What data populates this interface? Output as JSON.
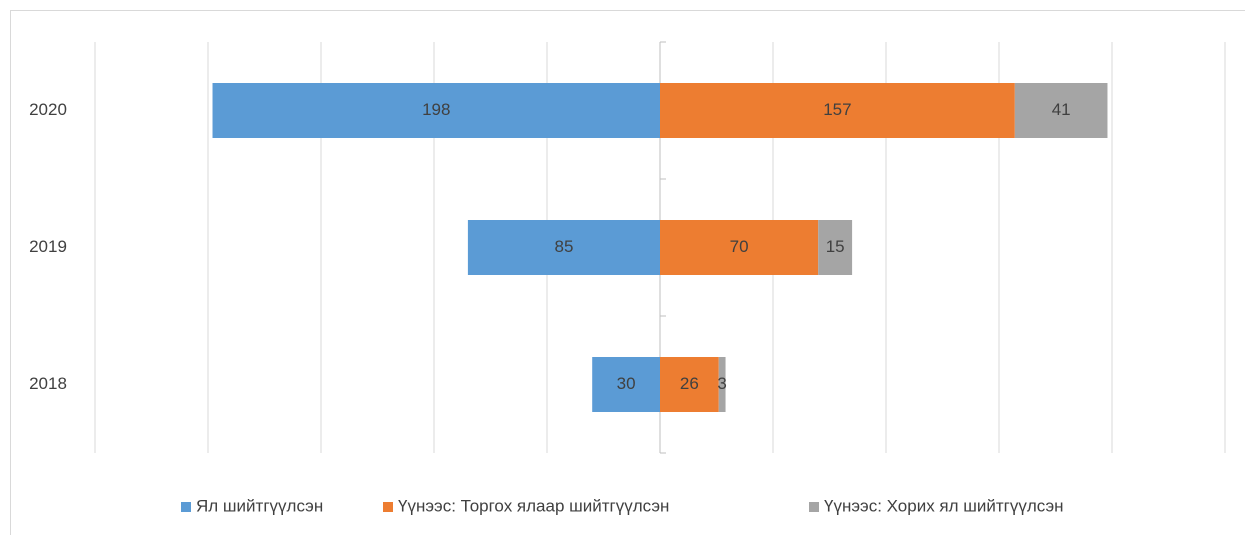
{
  "chart_data": {
    "type": "diverging-bar",
    "categories": [
      "2020",
      "2019",
      "2018"
    ],
    "series": [
      {
        "name": "Ял шийтгүүлсэн",
        "color": "#5b9bd5",
        "side": "left",
        "values": [
          198,
          85,
          30
        ]
      },
      {
        "name": "Үүнээс: Торгох ялаар шийтгүүлсэн",
        "color": "#ed7d31",
        "side": "right",
        "values": [
          157,
          70,
          26
        ]
      },
      {
        "name": "Үүнээс: Хорих ял шийтгүүлсэн",
        "color": "#a5a5a5",
        "side": "right",
        "values": [
          41,
          15,
          3
        ]
      }
    ],
    "xlim": [
      -250,
      250
    ],
    "xticks": [
      -250,
      -200,
      -150,
      -100,
      -50,
      0,
      50,
      100,
      150,
      200,
      250
    ],
    "grid": true,
    "legend": "bottom"
  }
}
